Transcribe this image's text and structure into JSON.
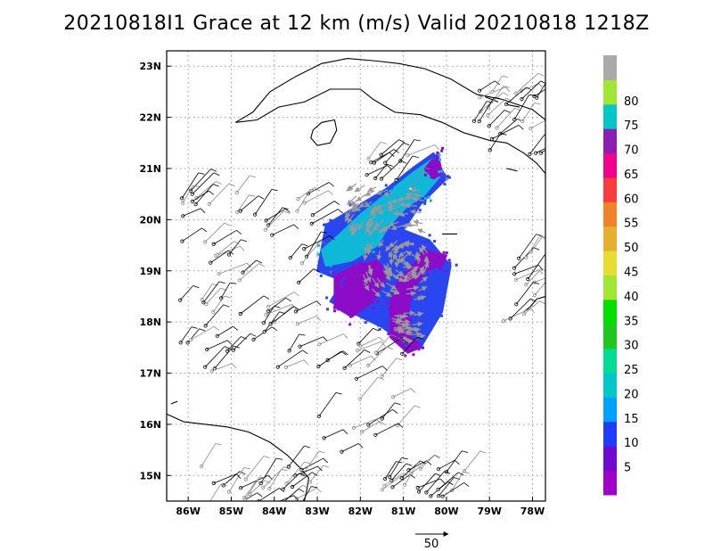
{
  "title": "20210818I1 Grace at 12 km (m/s) Valid 20210818 1218Z",
  "chart_data": {
    "type": "wind-field-map",
    "title": "20210818I1 Grace at 12 km (m/s) Valid 20210818 1218Z",
    "xlim": [
      -86.5,
      -77.7
    ],
    "ylim": [
      14.5,
      23.3
    ],
    "x_ticks": [
      -86,
      -85,
      -84,
      -83,
      -82,
      -81,
      -80,
      -79,
      -78
    ],
    "x_tick_labels": [
      "86W",
      "85W",
      "84W",
      "83W",
      "82W",
      "81W",
      "80W",
      "79W",
      "78W"
    ],
    "y_ticks": [
      15,
      16,
      17,
      18,
      19,
      20,
      21,
      22,
      23
    ],
    "y_tick_labels": [
      "15N",
      "16N",
      "17N",
      "18N",
      "19N",
      "20N",
      "21N",
      "22N",
      "23N"
    ],
    "grid": true,
    "colorbar": {
      "levels": [
        5,
        10,
        15,
        20,
        25,
        30,
        35,
        40,
        45,
        50,
        55,
        60,
        65,
        70,
        75,
        80
      ],
      "labels": [
        "5",
        "10",
        "15",
        "20",
        "25",
        "30",
        "35",
        "40",
        "45",
        "50",
        "55",
        "60",
        "65",
        "70",
        "75",
        "80"
      ],
      "colors": [
        "#a000c8",
        "#6e0ad2",
        "#1e3cff",
        "#00a0ff",
        "#00c8c8",
        "#00dc96",
        "#1ec81e",
        "#00e000",
        "#a0e632",
        "#e6dc32",
        "#e6af2d",
        "#f08228",
        "#fa3c3c",
        "#f0008c",
        "#8c1eb4",
        "#00c8c8",
        "#a0e632",
        "#aaaaaa"
      ]
    },
    "reference_vector": {
      "label": "50",
      "speed": 50
    },
    "wind_field": {
      "center_lon": -80.9,
      "center_lat": 19.2,
      "regions": [
        {
          "name": "cyan band",
          "speed": 20,
          "polygon": [
            [
              -82.5,
              19.7
            ],
            [
              -82.0,
              20.1
            ],
            [
              -81.4,
              20.5
            ],
            [
              -80.8,
              20.9
            ],
            [
              -80.3,
              21.2
            ],
            [
              -80.1,
              20.9
            ],
            [
              -80.5,
              20.5
            ],
            [
              -81.0,
              20.2
            ],
            [
              -81.4,
              19.8
            ],
            [
              -81.6,
              19.5
            ],
            [
              -82.2,
              19.2
            ],
            [
              -82.8,
              19.1
            ],
            [
              -82.9,
              19.4
            ]
          ]
        },
        {
          "name": "blue envelope",
          "speed": 12,
          "polygon": [
            [
              -83.0,
              19.0
            ],
            [
              -82.8,
              19.9
            ],
            [
              -82.2,
              20.2
            ],
            [
              -81.4,
              20.6
            ],
            [
              -80.8,
              21.0
            ],
            [
              -80.3,
              21.3
            ],
            [
              -80.0,
              20.8
            ],
            [
              -80.6,
              20.3
            ],
            [
              -81.0,
              19.8
            ],
            [
              -80.4,
              19.6
            ],
            [
              -79.9,
              19.1
            ],
            [
              -80.1,
              18.2
            ],
            [
              -80.6,
              17.5
            ],
            [
              -81.0,
              17.6
            ],
            [
              -81.5,
              17.9
            ],
            [
              -82.0,
              18.1
            ],
            [
              -82.7,
              18.4
            ],
            [
              -82.4,
              18.8
            ]
          ]
        },
        {
          "name": "purple south-west lobe",
          "speed": 4,
          "polygon": [
            [
              -82.6,
              18.9
            ],
            [
              -82.1,
              19.1
            ],
            [
              -81.6,
              19.2
            ],
            [
              -81.4,
              18.9
            ],
            [
              -81.7,
              18.4
            ],
            [
              -82.2,
              18.1
            ],
            [
              -82.6,
              18.3
            ]
          ]
        },
        {
          "name": "purple eastern arc",
          "speed": 4,
          "polygon": [
            [
              -80.1,
              19.1
            ],
            [
              -80.5,
              19.0
            ],
            [
              -80.8,
              18.6
            ],
            [
              -80.9,
              18.1
            ],
            [
              -80.8,
              17.7
            ],
            [
              -80.6,
              17.5
            ],
            [
              -80.9,
              17.4
            ],
            [
              -81.3,
              17.7
            ],
            [
              -81.3,
              18.4
            ],
            [
              -81.1,
              18.8
            ],
            [
              -80.5,
              19.4
            ],
            [
              -80.0,
              19.3
            ]
          ]
        },
        {
          "name": "purple north-east tip",
          "speed": 4,
          "polygon": [
            [
              -80.5,
              21.0
            ],
            [
              -80.2,
              21.3
            ],
            [
              -80.1,
              20.9
            ],
            [
              -80.3,
              20.8
            ]
          ]
        }
      ],
      "vector_groups": [
        {
          "name": "northern band",
          "center": [
            -81.4,
            20.2
          ],
          "extent": [
            1.8,
            0.9
          ],
          "count": 60
        },
        {
          "name": "core",
          "center": [
            -81.2,
            19.0
          ],
          "extent": [
            1.5,
            1.1
          ],
          "count": 70
        },
        {
          "name": "southern arc",
          "center": [
            -80.9,
            17.9
          ],
          "extent": [
            0.6,
            0.6
          ],
          "count": 25
        }
      ]
    },
    "wind_barbs": {
      "groups": [
        {
          "name": "west Caribbean",
          "center": [
            -84.6,
            18.8
          ],
          "extent": [
            1.6,
            1.8
          ],
          "count": 70
        },
        {
          "name": "NE corner",
          "center": [
            -78.6,
            22.0
          ],
          "extent": [
            0.8,
            0.8
          ],
          "count": 25
        },
        {
          "name": "SW corner",
          "center": [
            -84.4,
            14.8
          ],
          "extent": [
            1.3,
            0.4
          ],
          "count": 28
        },
        {
          "name": "SE group",
          "center": [
            -80.5,
            14.9
          ],
          "extent": [
            1.0,
            0.4
          ],
          "count": 22
        },
        {
          "name": "mid south",
          "center": [
            -82.0,
            16.5
          ],
          "extent": [
            1.0,
            1.1
          ],
          "count": 25
        },
        {
          "name": "NW of center",
          "center": [
            -81.3,
            21.0
          ],
          "extent": [
            0.6,
            0.4
          ],
          "count": 12
        },
        {
          "name": "east flank",
          "center": [
            -78.3,
            18.6
          ],
          "extent": [
            0.4,
            0.8
          ],
          "count": 14
        }
      ]
    }
  }
}
